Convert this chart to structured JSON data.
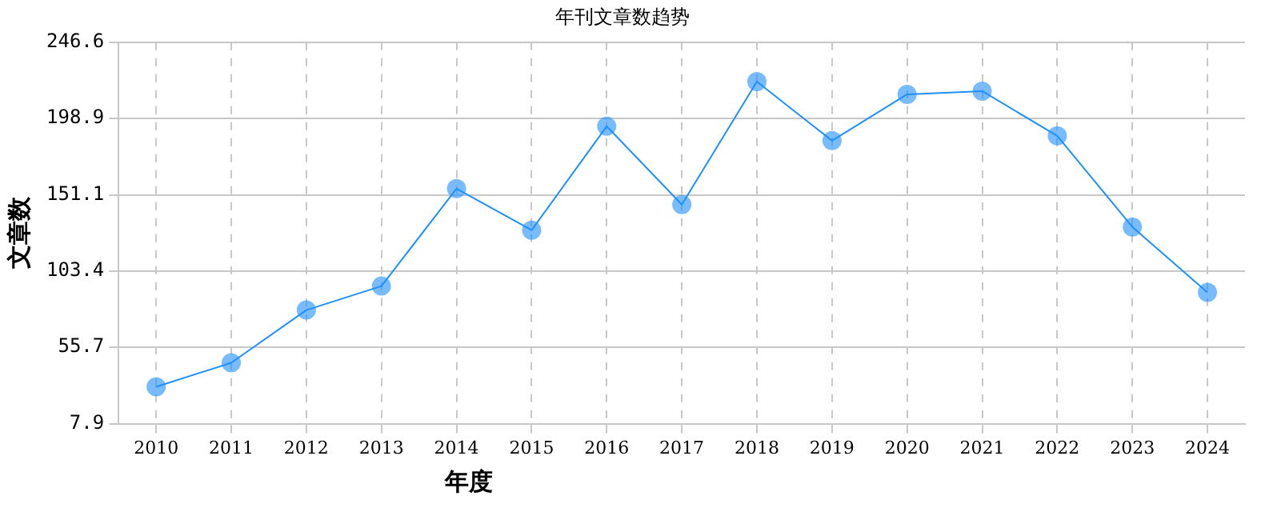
{
  "chart_data": {
    "type": "line",
    "title": "年刊文章数趋势",
    "xlabel": "年度",
    "ylabel": "文章数",
    "categories": [
      "2010",
      "2011",
      "2012",
      "2013",
      "2014",
      "2015",
      "2016",
      "2017",
      "2018",
      "2019",
      "2020",
      "2021",
      "2022",
      "2023",
      "2024"
    ],
    "series": [
      {
        "color": "#1e90ff",
        "values": [
          31,
          46,
          79,
          94,
          155,
          129,
          194,
          145,
          222,
          185,
          214,
          216,
          188,
          131,
          90
        ]
      }
    ],
    "ylim": [
      7.9,
      246.6
    ],
    "yticks": [
      7.9,
      55.7,
      103.4,
      151.1,
      198.9,
      246.6
    ],
    "grid": true,
    "legend": false,
    "marker": "circle",
    "line_style": "solid"
  }
}
